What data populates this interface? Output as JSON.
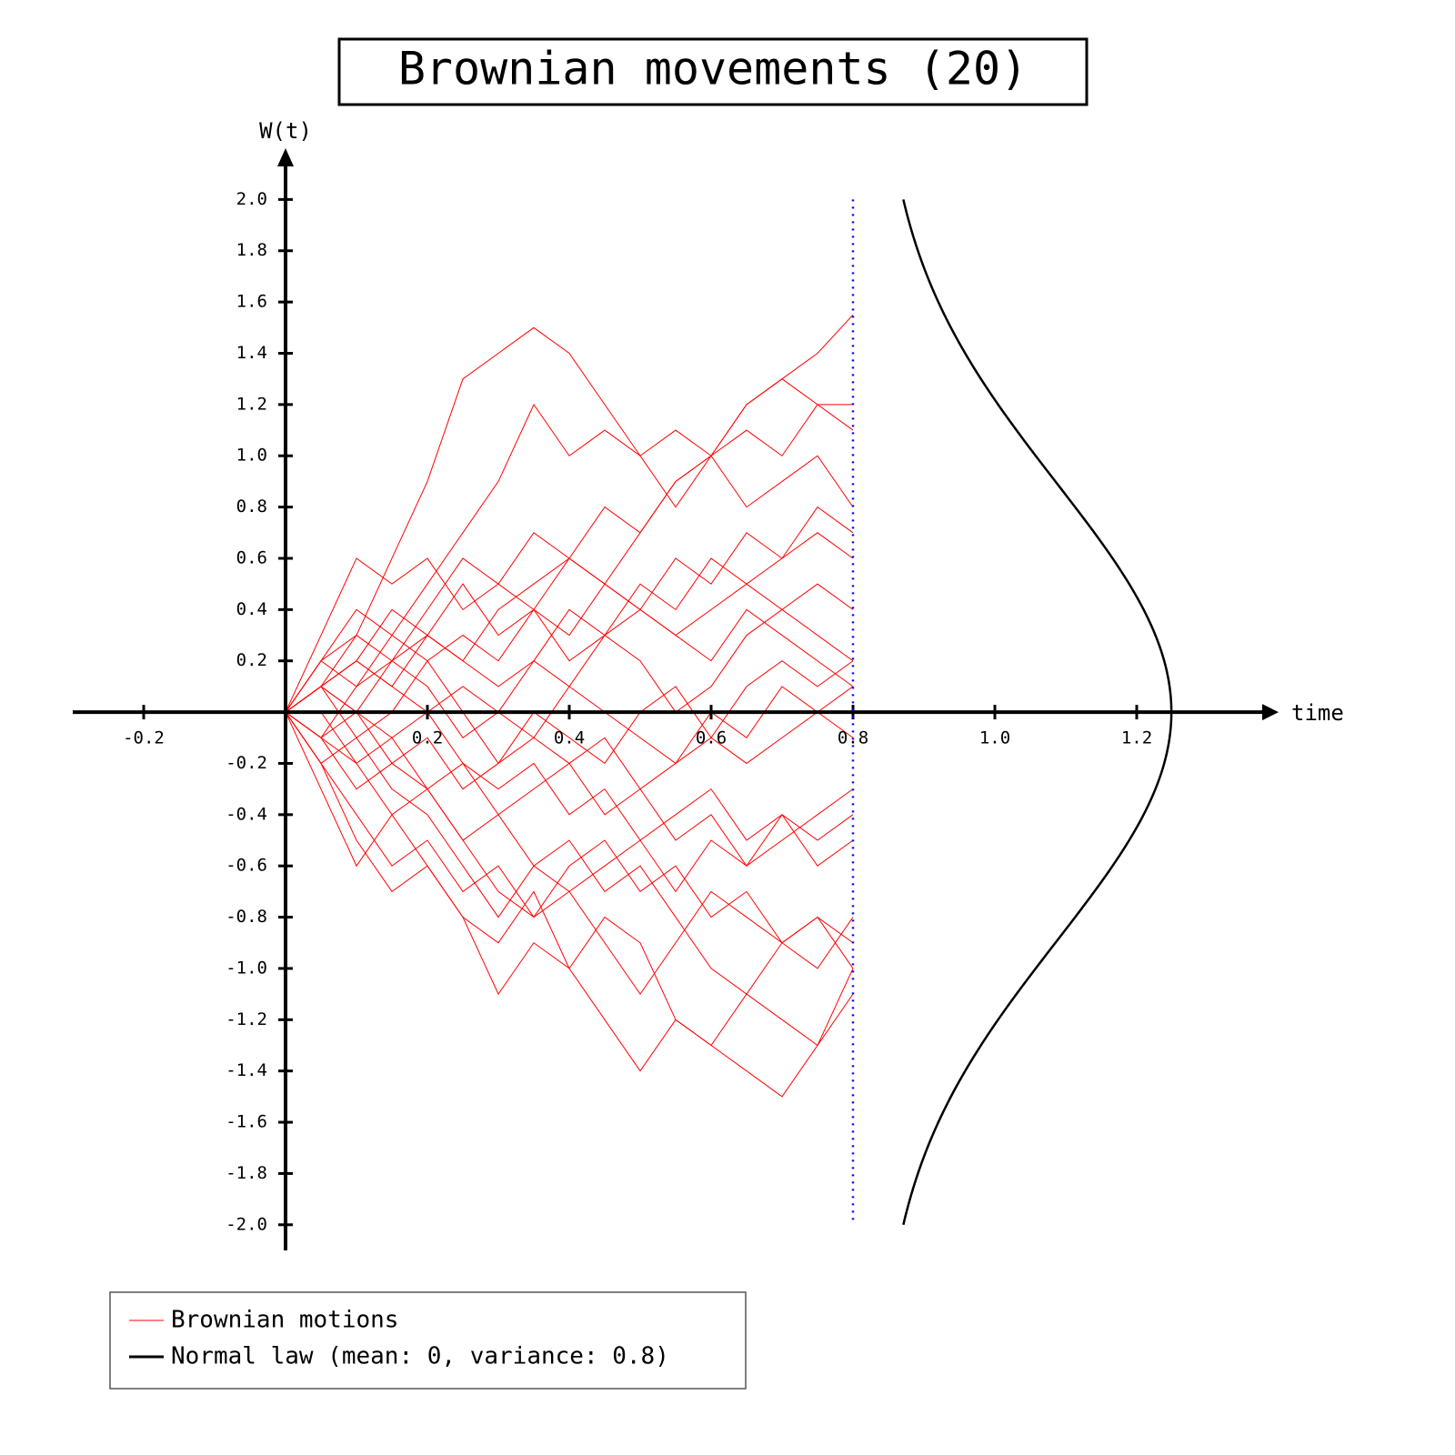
{
  "chart_data": {
    "type": "line",
    "title": "Brownian movements (20)",
    "x_label": "time",
    "y_label": "W(t)",
    "x": [
      0,
      0.05,
      0.1,
      0.15,
      0.2,
      0.25,
      0.3,
      0.35,
      0.4,
      0.45,
      0.5,
      0.55,
      0.6,
      0.65,
      0.7,
      0.75,
      0.8
    ],
    "series_name": "Brownian motions",
    "series_color": "#ff0000",
    "series": [
      {
        "values": [
          0,
          0.1,
          0.3,
          0.6,
          0.9,
          1.3,
          1.4,
          1.5,
          1.4,
          1.2,
          1.0,
          1.1,
          1.0,
          1.2,
          1.3,
          1.2,
          1.2
        ]
      },
      {
        "values": [
          0,
          0.2,
          0.4,
          0.3,
          0.5,
          0.7,
          0.9,
          1.2,
          1.0,
          1.1,
          1.0,
          0.8,
          1.0,
          1.2,
          1.3,
          1.4,
          1.55
        ]
      },
      {
        "values": [
          0,
          -0.2,
          -0.5,
          -0.7,
          -0.6,
          -0.8,
          -1.1,
          -0.9,
          -1.0,
          -0.8,
          -0.9,
          -1.2,
          -1.3,
          -1.4,
          -1.5,
          -1.3,
          -1.0
        ]
      },
      {
        "values": [
          0,
          -0.3,
          -0.6,
          -0.4,
          -0.6,
          -0.8,
          -0.9,
          -0.7,
          -1.0,
          -1.2,
          -1.4,
          -1.2,
          -1.3,
          -1.1,
          -1.2,
          -1.3,
          -1.1
        ]
      },
      {
        "values": [
          0,
          0.1,
          0.2,
          0.1,
          0.3,
          0.2,
          0.4,
          0.5,
          0.6,
          0.8,
          0.7,
          0.9,
          1.0,
          0.8,
          0.9,
          1.0,
          0.8
        ]
      },
      {
        "values": [
          0,
          0.3,
          0.6,
          0.5,
          0.6,
          0.4,
          0.5,
          0.7,
          0.6,
          0.5,
          0.4,
          0.3,
          0.4,
          0.5,
          0.6,
          0.7,
          0.6
        ]
      },
      {
        "values": [
          0,
          0.1,
          -0.1,
          0.0,
          0.2,
          0.3,
          0.2,
          0.4,
          0.3,
          0.5,
          0.4,
          0.3,
          0.2,
          0.4,
          0.3,
          0.2,
          0.1
        ]
      },
      {
        "values": [
          0,
          -0.1,
          0.1,
          0.2,
          0.1,
          -0.1,
          0.0,
          0.2,
          0.1,
          0.3,
          0.2,
          0.0,
          0.1,
          0.3,
          0.4,
          0.3,
          0.2
        ]
      },
      {
        "values": [
          0,
          -0.2,
          -0.1,
          -0.3,
          -0.4,
          -0.6,
          -0.8,
          -0.6,
          -0.7,
          -0.9,
          -1.1,
          -0.9,
          -0.7,
          -0.8,
          -0.9,
          -0.8,
          -0.9
        ]
      },
      {
        "values": [
          0,
          0.1,
          0.0,
          -0.2,
          -0.3,
          -0.5,
          -0.4,
          -0.6,
          -0.5,
          -0.7,
          -0.6,
          -0.8,
          -1.0,
          -1.1,
          -0.9,
          -1.0,
          -0.8
        ]
      },
      {
        "values": [
          0,
          0.0,
          -0.2,
          -0.1,
          -0.3,
          -0.2,
          -0.4,
          -0.3,
          -0.2,
          -0.4,
          -0.3,
          -0.5,
          -0.4,
          -0.6,
          -0.5,
          -0.4,
          -0.3
        ]
      },
      {
        "values": [
          0,
          0.2,
          0.1,
          0.3,
          0.2,
          0.0,
          -0.2,
          -0.1,
          0.1,
          0.0,
          -0.1,
          -0.2,
          0.0,
          -0.1,
          0.1,
          0.0,
          -0.1
        ]
      },
      {
        "values": [
          0,
          -0.1,
          -0.3,
          -0.2,
          -0.1,
          -0.3,
          -0.2,
          0.0,
          -0.1,
          -0.2,
          0.0,
          0.1,
          -0.1,
          -0.2,
          -0.1,
          0.0,
          0.1
        ]
      },
      {
        "values": [
          0,
          0.1,
          0.2,
          0.4,
          0.3,
          0.5,
          0.3,
          0.4,
          0.2,
          0.3,
          0.4,
          0.6,
          0.5,
          0.7,
          0.6,
          0.8,
          0.7
        ]
      },
      {
        "values": [
          0,
          -0.2,
          -0.4,
          -0.6,
          -0.5,
          -0.7,
          -0.6,
          -0.8,
          -0.7,
          -0.6,
          -0.5,
          -0.7,
          -0.5,
          -0.6,
          -0.4,
          -0.5,
          -0.4
        ]
      },
      {
        "values": [
          0,
          0.1,
          0.2,
          0.1,
          0.0,
          -0.2,
          -0.3,
          -0.2,
          -0.4,
          -0.3,
          -0.5,
          -0.4,
          -0.3,
          -0.5,
          -0.4,
          -0.6,
          -0.5
        ]
      },
      {
        "values": [
          0,
          -0.1,
          0.0,
          0.2,
          0.3,
          0.2,
          0.1,
          0.2,
          0.4,
          0.3,
          0.5,
          0.4,
          0.6,
          0.5,
          0.4,
          0.5,
          0.4
        ]
      },
      {
        "values": [
          0,
          0.1,
          0.0,
          -0.1,
          0.0,
          0.1,
          0.0,
          -0.1,
          -0.2,
          -0.1,
          -0.3,
          -0.2,
          -0.1,
          0.1,
          0.2,
          0.1,
          0.2
        ]
      },
      {
        "values": [
          0,
          -0.1,
          -0.2,
          -0.4,
          -0.3,
          -0.5,
          -0.7,
          -0.8,
          -0.6,
          -0.5,
          -0.7,
          -0.6,
          -0.8,
          -0.7,
          -0.9,
          -0.8,
          -1.0
        ]
      },
      {
        "values": [
          0,
          0.2,
          0.3,
          0.2,
          0.4,
          0.6,
          0.5,
          0.4,
          0.6,
          0.5,
          0.7,
          0.9,
          1.0,
          1.1,
          1.0,
          1.2,
          1.1
        ]
      }
    ],
    "normal": {
      "label": "Normal law (mean: 0, variance: 0.8)",
      "mean": 0,
      "variance": 0.8,
      "color": "#000000"
    },
    "marker_color": "#0000ff",
    "xlim": [
      -0.3,
      1.4
    ],
    "ylim": [
      -2.1,
      2.2
    ],
    "xticks": [
      -0.2,
      0.2,
      0.4,
      0.6,
      0.8,
      {
        "value": 1,
        "label": "1.0"
      },
      1.2
    ],
    "yticks": [
      {
        "value": -2,
        "label": "-2.0"
      },
      -1.8,
      -1.6,
      -1.4,
      -1.2,
      {
        "value": -1,
        "label": "-1.0"
      },
      -0.8,
      -0.6,
      -0.4,
      -0.2,
      0.2,
      0.4,
      0.6,
      0.8,
      {
        "value": 1,
        "label": "1.0"
      },
      1.2,
      1.4,
      1.6,
      1.8,
      {
        "value": 2,
        "label": "2.0"
      }
    ]
  }
}
